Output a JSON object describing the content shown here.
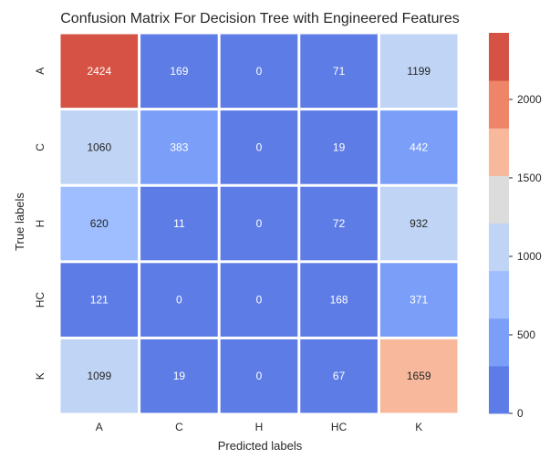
{
  "chart_data": {
    "type": "heatmap",
    "title": "Confusion Matrix For Decision Tree with Engineered Features",
    "xlabel": "Predicted labels",
    "ylabel": "True labels",
    "x_categories": [
      "A",
      "C",
      "H",
      "HC",
      "K"
    ],
    "y_categories": [
      "A",
      "C",
      "H",
      "HC",
      "K"
    ],
    "values": [
      [
        2424,
        169,
        0,
        71,
        1199
      ],
      [
        1060,
        383,
        0,
        19,
        442
      ],
      [
        620,
        11,
        0,
        72,
        932
      ],
      [
        121,
        0,
        0,
        168,
        371
      ],
      [
        1099,
        19,
        0,
        67,
        1659
      ]
    ],
    "colorbar": {
      "ticks": [
        0,
        500,
        1000,
        1500,
        2000
      ],
      "range": [
        0,
        2424
      ],
      "bins": 8,
      "colors": [
        "#5d7ce6",
        "#7b9ff9",
        "#9ebeff",
        "#c0d4f5",
        "#dddcdc",
        "#f7b89c",
        "#ee8468",
        "#d65244"
      ]
    },
    "grid": false
  }
}
